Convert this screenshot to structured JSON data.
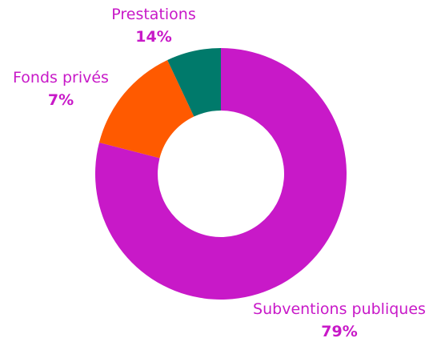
{
  "chart_data": {
    "type": "pie",
    "style": "donut",
    "categories": [
      "Subventions publiques",
      "Prestations",
      "Fonds privés"
    ],
    "values": [
      79,
      14,
      7
    ],
    "value_labels": [
      "79%",
      "14%",
      "7%"
    ],
    "colors": [
      "#c819c8",
      "#ff5a00",
      "#007a6b"
    ],
    "label_color": "#c819c8",
    "legend": "none"
  }
}
